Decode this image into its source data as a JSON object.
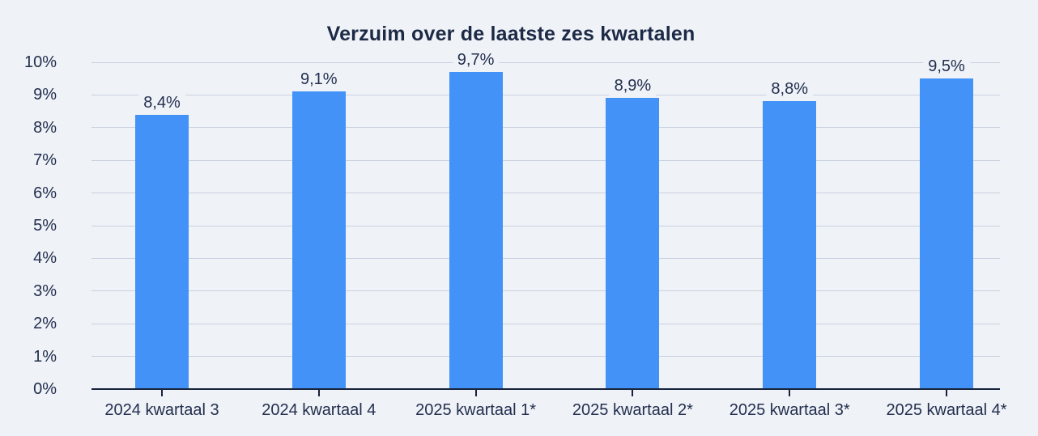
{
  "chart_data": {
    "type": "bar",
    "title": "Verzuim over de laatste zes kwartalen",
    "categories": [
      "2024 kwartaal 3",
      "2024 kwartaal 4",
      "2025 kwartaal 1*",
      "2025 kwartaal 2*",
      "2025 kwartaal 3*",
      "2025 kwartaal 4*"
    ],
    "values": [
      8.4,
      9.1,
      9.7,
      8.9,
      8.8,
      9.5
    ],
    "value_labels": [
      "8,4%",
      "9,1%",
      "9,7%",
      "8,9%",
      "8,8%",
      "9,5%"
    ],
    "xlabel": "",
    "ylabel": "",
    "ylim": [
      0,
      10
    ],
    "ytick_step": 1,
    "ytick_labels": [
      "0%",
      "1%",
      "2%",
      "3%",
      "4%",
      "5%",
      "6%",
      "7%",
      "8%",
      "9%",
      "10%"
    ],
    "grid": "horizontal",
    "legend": "none",
    "colors": {
      "bar": "#4292f7",
      "background": "#eff2f7",
      "grid": "#c9d1e0",
      "axis": "#17233c",
      "title_text": "#1d2a46",
      "label_text": "#232f4e"
    }
  }
}
